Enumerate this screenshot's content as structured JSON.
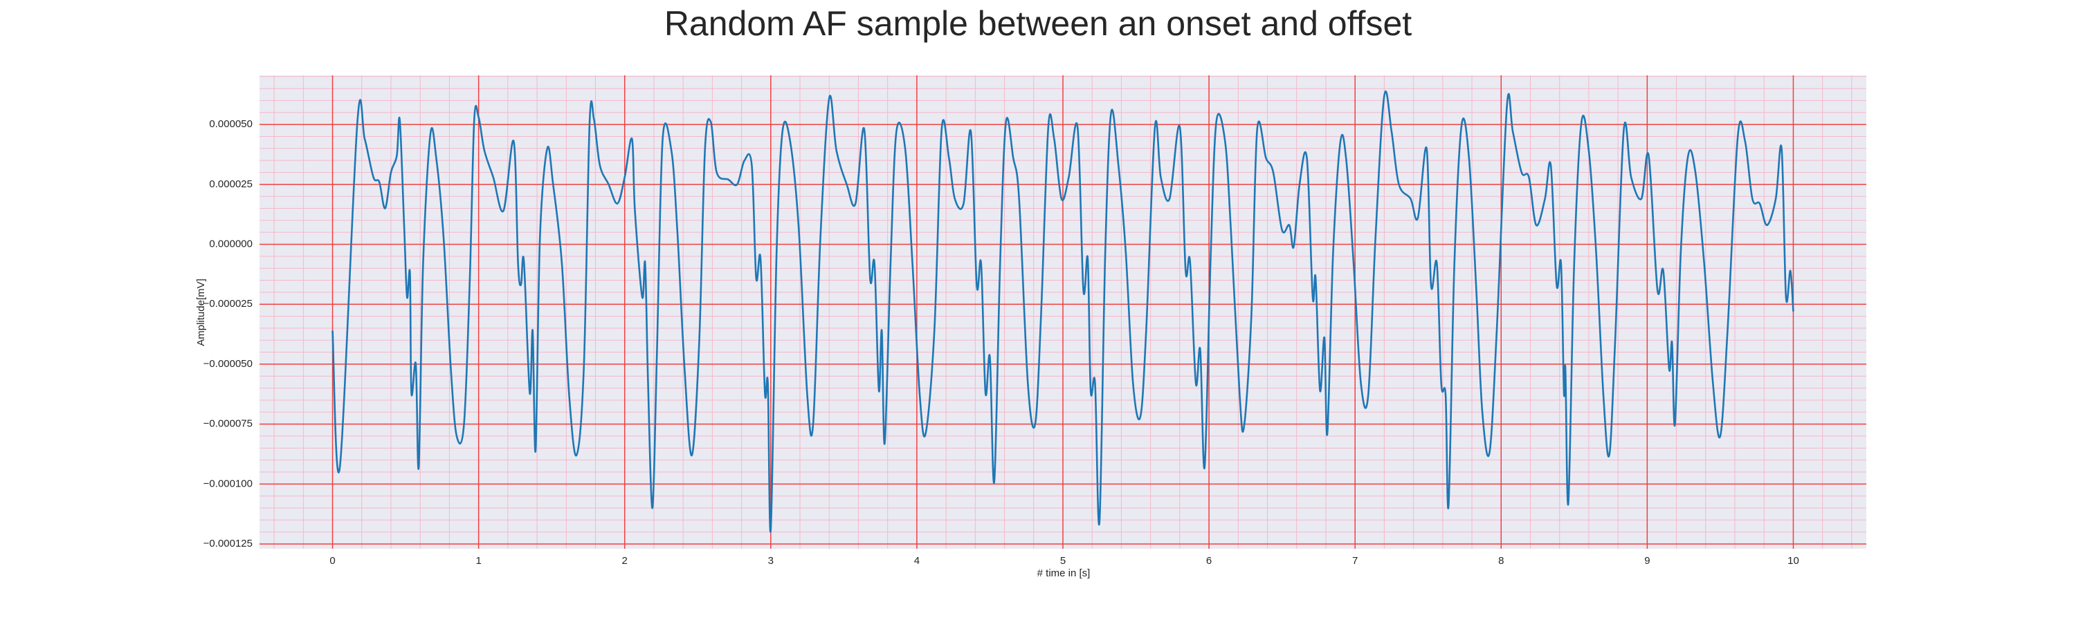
{
  "chart_data": {
    "type": "line",
    "title": "Random AF sample between an onset and offset",
    "xlabel": "# time in [s]",
    "ylabel": "Amplitude[mV]",
    "xlim": [
      -0.5,
      10.5
    ],
    "xticks": [
      0,
      1,
      2,
      3,
      4,
      5,
      6,
      7,
      8,
      9,
      10
    ],
    "ylim": [
      -0.000127,
      7.05e-05
    ],
    "yticks": [
      {
        "value": 5e-05,
        "label": "0.000050"
      },
      {
        "value": 2.5e-05,
        "label": "0.000025"
      },
      {
        "value": 0,
        "label": "0.000000"
      },
      {
        "value": -2.5e-05,
        "label": "−0.000025"
      },
      {
        "value": -5e-05,
        "label": "−0.000050"
      },
      {
        "value": -7.5e-05,
        "label": "−0.000075"
      },
      {
        "value": -0.0001,
        "label": "−0.000100"
      },
      {
        "value": -0.000125,
        "label": "−0.000125"
      }
    ],
    "grid": true,
    "minor_grid": true,
    "minor_divisions": 5,
    "series": [
      {
        "color": "#1f77b4",
        "x": [
          0,
          0.05,
          0.17,
          0.22,
          0.28,
          0.32,
          0.36,
          0.4,
          0.44,
          0.46,
          0.49,
          0.51,
          0.53,
          0.54,
          0.57,
          0.59,
          0.62,
          0.67,
          0.71,
          0.76,
          0.81,
          0.85,
          0.9,
          0.94,
          0.97,
          1.0,
          1.04,
          1.1,
          1.17,
          1.24,
          1.27,
          1.29,
          1.31,
          1.35,
          1.37,
          1.39,
          1.42,
          1.47,
          1.51,
          1.57,
          1.62,
          1.67,
          1.72,
          1.76,
          1.79,
          1.83,
          1.89,
          1.95,
          2.0,
          2.05,
          2.07,
          2.12,
          2.14,
          2.16,
          2.19,
          2.22,
          2.26,
          2.32,
          2.36,
          2.41,
          2.46,
          2.51,
          2.55,
          2.59,
          2.63,
          2.71,
          2.77,
          2.82,
          2.87,
          2.9,
          2.93,
          2.96,
          2.98,
          3.0,
          3.04,
          3.08,
          3.13,
          3.19,
          3.25,
          3.29,
          3.34,
          3.4,
          3.45,
          3.52,
          3.58,
          3.64,
          3.68,
          3.71,
          3.74,
          3.76,
          3.78,
          3.82,
          3.86,
          3.92,
          3.97,
          4.02,
          4.06,
          4.12,
          4.17,
          4.22,
          4.26,
          4.32,
          4.37,
          4.41,
          4.44,
          4.47,
          4.5,
          4.53,
          4.57,
          4.61,
          4.66,
          4.7,
          4.76,
          4.81,
          4.85,
          4.9,
          4.94,
          4.99,
          5.04,
          5.1,
          5.14,
          5.17,
          5.19,
          5.22,
          5.25,
          5.29,
          5.33,
          5.38,
          5.43,
          5.48,
          5.53,
          5.57,
          5.63,
          5.67,
          5.73,
          5.8,
          5.84,
          5.87,
          5.91,
          5.94,
          5.97,
          6.01,
          6.05,
          6.11,
          6.15,
          6.21,
          6.24,
          6.29,
          6.33,
          6.39,
          6.44,
          6.5,
          6.55,
          6.58,
          6.62,
          6.67,
          6.71,
          6.73,
          6.76,
          6.79,
          6.81,
          6.85,
          6.9,
          6.94,
          6.99,
          7.04,
          7.09,
          7.14,
          7.2,
          7.25,
          7.3,
          7.38,
          7.43,
          7.49,
          7.52,
          7.56,
          7.59,
          7.62,
          7.64,
          7.68,
          7.73,
          7.78,
          7.83,
          7.87,
          7.92,
          7.97,
          8.04,
          8.08,
          8.14,
          8.19,
          8.24,
          8.3,
          8.34,
          8.38,
          8.41,
          8.43,
          8.44,
          8.46,
          8.5,
          8.55,
          8.6,
          8.65,
          8.7,
          8.74,
          8.78,
          8.84,
          8.89,
          8.96,
          9.01,
          9.07,
          9.11,
          9.15,
          9.17,
          9.19,
          9.23,
          9.28,
          9.33,
          9.39,
          9.45,
          9.5,
          9.55,
          9.62,
          9.67,
          9.72,
          9.77,
          9.82,
          9.88,
          9.92,
          9.95,
          9.98,
          10.0
        ],
        "values": [
          -3.6e-05,
          -9.3e-05,
          5.1e-05,
          4.4e-05,
          2.8e-05,
          2.6e-05,
          1.5e-05,
          3e-05,
          3.7e-05,
          5.2e-05,
          8e-06,
          -2.2e-05,
          -1.2e-05,
          -6.2e-05,
          -5e-05,
          -9.3e-05,
          -8e-06,
          4.6e-05,
          3.6e-05,
          3e-06,
          -5.2e-05,
          -8e-05,
          -7.5e-05,
          -1.4e-05,
          5.2e-05,
          5.3e-05,
          3.9e-05,
          2.8e-05,
          1.4e-05,
          4.3e-05,
          -8e-06,
          -1.7e-05,
          -7e-06,
          -6.2e-05,
          -3.6e-05,
          -8.6e-05,
          3e-06,
          4e-05,
          2.5e-05,
          -8e-06,
          -6.3e-05,
          -8.8e-05,
          -5.2e-05,
          5.1e-05,
          5.2e-05,
          3.3e-05,
          2.5e-05,
          1.7e-05,
          2.8e-05,
          4.4e-05,
          1.4e-05,
          -2.2e-05,
          -8e-06,
          -5.8e-05,
          -0.00011,
          -4.7e-05,
          4.4e-05,
          3.9e-05,
          6e-06,
          -5.2e-05,
          -8.8e-05,
          -4.1e-05,
          4e-05,
          5.1e-05,
          3e-05,
          2.7e-05,
          2.5e-05,
          3.5e-05,
          3.3e-05,
          -1.4e-05,
          -6e-06,
          -6.2e-05,
          -5.8e-05,
          -0.000119,
          -3e-06,
          4.7e-05,
          4.4e-05,
          8e-06,
          -6.3e-05,
          -7.5e-05,
          3e-06,
          6.1e-05,
          3.9e-05,
          2.5e-05,
          1.7e-05,
          4.8e-05,
          -1.4e-05,
          -8e-06,
          -6.1e-05,
          -3.6e-05,
          -8.3e-05,
          -8e-06,
          4.7e-05,
          4e-05,
          -8e-06,
          -6.3e-05,
          -7.9e-05,
          -3.6e-05,
          4.8e-05,
          3.6e-05,
          1.9e-05,
          1.7e-05,
          4.7e-05,
          -1.7e-05,
          -8e-06,
          -6.2e-05,
          -4.7e-05,
          -9.9e-05,
          -8e-06,
          5.1e-05,
          3.6e-05,
          1.9e-05,
          -5.8e-05,
          -7.5e-05,
          -3e-05,
          4.9e-05,
          4.4e-05,
          1.9e-05,
          2.8e-05,
          4.9e-05,
          -1.9e-05,
          -6e-06,
          -6.1e-05,
          -5.8e-05,
          -0.000116,
          -3e-06,
          5.5e-05,
          3.3e-05,
          -3e-06,
          -5.8e-05,
          -7.2e-05,
          -3.6e-05,
          4.9e-05,
          2.8e-05,
          1.9e-05,
          4.9e-05,
          -1.1e-05,
          -7e-06,
          -5.8e-05,
          -4.4e-05,
          -9.3e-05,
          -8e-06,
          5.1e-05,
          4.3e-05,
          6e-06,
          -6.3e-05,
          -7.6e-05,
          -3e-05,
          4.8e-05,
          3.6e-05,
          3e-05,
          6e-06,
          8e-06,
          -1e-06,
          2.5e-05,
          3.6e-05,
          -2.2e-05,
          -1.4e-05,
          -6.1e-05,
          -3.9e-05,
          -7.9e-05,
          -3e-06,
          4.3e-05,
          3.5e-05,
          -8e-06,
          -5.8e-05,
          -6.3e-05,
          3e-06,
          6.2e-05,
          4.7e-05,
          2.5e-05,
          1.9e-05,
          1.1e-05,
          4e-05,
          -1.7e-05,
          -8e-06,
          -5.8e-05,
          -6.3e-05,
          -0.000109,
          -8e-06,
          5e-05,
          3.6e-05,
          -1.9e-05,
          -6.9e-05,
          -8.7e-05,
          -3.6e-05,
          5.8e-05,
          4.7e-05,
          3e-05,
          2.8e-05,
          8e-06,
          1.9e-05,
          3.3e-05,
          -1.7e-05,
          -8e-06,
          -6.2e-05,
          -5.2e-05,
          -0.000108,
          -8e-06,
          5.1e-05,
          3.9e-05,
          -3e-06,
          -6.3e-05,
          -8.8e-05,
          -4.1e-05,
          4.8e-05,
          2.8e-05,
          1.9e-05,
          3.7e-05,
          -1.9e-05,
          -1.1e-05,
          -5.2e-05,
          -4.1e-05,
          -7.5e-05,
          -3e-06,
          3.7e-05,
          3e-05,
          -8e-06,
          -5.8e-05,
          -8e-05,
          -3.6e-05,
          4.5e-05,
          4.3e-05,
          1.9e-05,
          1.7e-05,
          8e-06,
          1.9e-05,
          4e-05,
          -2.2e-05,
          -1.1e-05,
          -2.8e-05
        ]
      }
    ]
  }
}
